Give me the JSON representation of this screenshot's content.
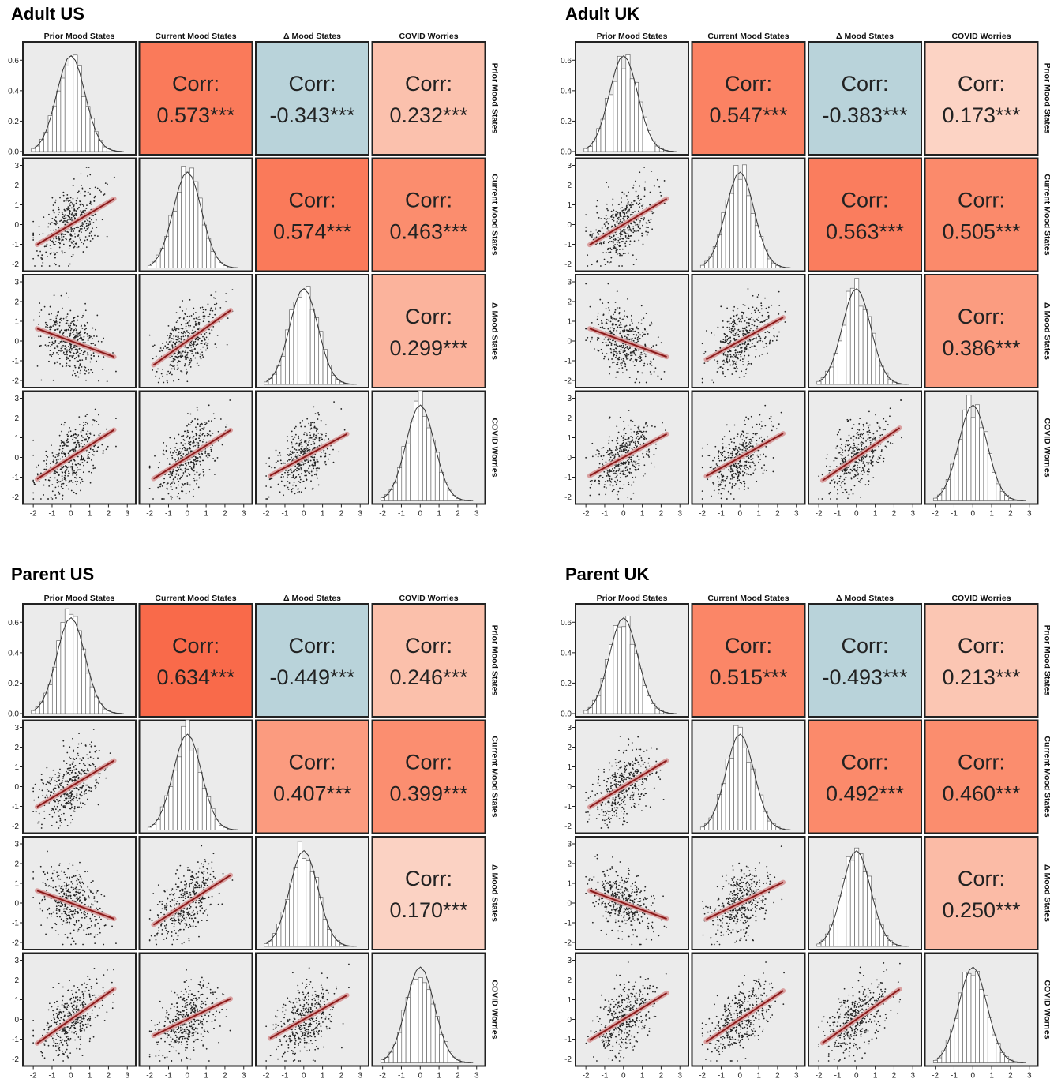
{
  "variables": [
    "Prior Mood States",
    "Current Mood States",
    "Δ Mood States",
    "COVID Worries"
  ],
  "corr_label": "Corr:",
  "colors": {
    "strong_positive": "#fa6f50",
    "moderate_positive": "#fb9275",
    "weak_positive": "#fbc1ad",
    "negative": "#b9d3da",
    "cell_background": "#ebebeb",
    "regression_line": "#8b1a1a",
    "confidence_band": "#d9a0a0"
  },
  "chart_data": [
    {
      "type": "scatter",
      "title": "Adult US",
      "subtype": "correlation-matrix",
      "histogram_ylim": [
        0,
        0.7
      ],
      "histogram_yticks": [
        "0.0",
        "0.2",
        "0.4",
        "0.6"
      ],
      "scatter_ylim": [
        -2.2,
        3.2
      ],
      "axis_ticks": [
        "-2",
        "-1",
        "0",
        "1",
        "2",
        "3"
      ],
      "grid": false,
      "correlations": [
        {
          "row": 0,
          "col": 1,
          "value": "0.573***",
          "color": "#fa7a5a"
        },
        {
          "row": 0,
          "col": 2,
          "value": "-0.343***",
          "color": "#b9d3da"
        },
        {
          "row": 0,
          "col": 3,
          "value": "0.232***",
          "color": "#fbc1ad"
        },
        {
          "row": 1,
          "col": 2,
          "value": "0.574***",
          "color": "#fa7a5a"
        },
        {
          "row": 1,
          "col": 3,
          "value": "0.463***",
          "color": "#fb8d6e"
        },
        {
          "row": 2,
          "col": 3,
          "value": "0.299***",
          "color": "#fbb39c"
        }
      ]
    },
    {
      "type": "scatter",
      "title": "Adult UK",
      "subtype": "correlation-matrix",
      "histogram_ylim": [
        0,
        0.7
      ],
      "histogram_yticks": [
        "0.0",
        "0.2",
        "0.4",
        "0.6"
      ],
      "scatter_ylim": [
        -2.2,
        3.2
      ],
      "axis_ticks": [
        "-2",
        "-1",
        "0",
        "1",
        "2",
        "3"
      ],
      "grid": false,
      "correlations": [
        {
          "row": 0,
          "col": 1,
          "value": "0.547***",
          "color": "#fb8263"
        },
        {
          "row": 0,
          "col": 2,
          "value": "-0.383***",
          "color": "#b9d3da"
        },
        {
          "row": 0,
          "col": 3,
          "value": "0.173***",
          "color": "#fcd3c4"
        },
        {
          "row": 1,
          "col": 2,
          "value": "0.563***",
          "color": "#fa7d5e"
        },
        {
          "row": 1,
          "col": 3,
          "value": "0.505***",
          "color": "#fb8a6b"
        },
        {
          "row": 2,
          "col": 3,
          "value": "0.386***",
          "color": "#fb9c80"
        }
      ]
    },
    {
      "type": "scatter",
      "title": "Parent US",
      "subtype": "correlation-matrix",
      "histogram_ylim": [
        0,
        0.7
      ],
      "histogram_yticks": [
        "0.0",
        "0.2",
        "0.4",
        "0.6"
      ],
      "scatter_ylim": [
        -2.2,
        3.2
      ],
      "axis_ticks": [
        "-2",
        "-1",
        "0",
        "1",
        "2",
        "3"
      ],
      "grid": false,
      "correlations": [
        {
          "row": 0,
          "col": 1,
          "value": "0.634***",
          "color": "#f96a4a"
        },
        {
          "row": 0,
          "col": 2,
          "value": "-0.449***",
          "color": "#b9d3da"
        },
        {
          "row": 0,
          "col": 3,
          "value": "0.246***",
          "color": "#fbc0ab"
        },
        {
          "row": 1,
          "col": 2,
          "value": "0.407***",
          "color": "#fb9b7f"
        },
        {
          "row": 1,
          "col": 3,
          "value": "0.399***",
          "color": "#fb8e70"
        },
        {
          "row": 2,
          "col": 3,
          "value": "0.170***",
          "color": "#fbd2c3"
        }
      ]
    },
    {
      "type": "scatter",
      "title": "Parent UK",
      "subtype": "correlation-matrix",
      "histogram_ylim": [
        0,
        0.7
      ],
      "histogram_yticks": [
        "0.0",
        "0.2",
        "0.4",
        "0.6"
      ],
      "scatter_ylim": [
        -2.2,
        3.2
      ],
      "axis_ticks": [
        "-2",
        "-1",
        "0",
        "1",
        "2",
        "3"
      ],
      "grid": false,
      "correlations": [
        {
          "row": 0,
          "col": 1,
          "value": "0.515***",
          "color": "#fb8667"
        },
        {
          "row": 0,
          "col": 2,
          "value": "-0.493***",
          "color": "#b9d3da"
        },
        {
          "row": 0,
          "col": 3,
          "value": "0.213***",
          "color": "#fbc6b3"
        },
        {
          "row": 1,
          "col": 2,
          "value": "0.492***",
          "color": "#fb8a6b"
        },
        {
          "row": 1,
          "col": 3,
          "value": "0.460***",
          "color": "#fb8d6e"
        },
        {
          "row": 2,
          "col": 3,
          "value": "0.250***",
          "color": "#fbbba6"
        }
      ]
    }
  ]
}
